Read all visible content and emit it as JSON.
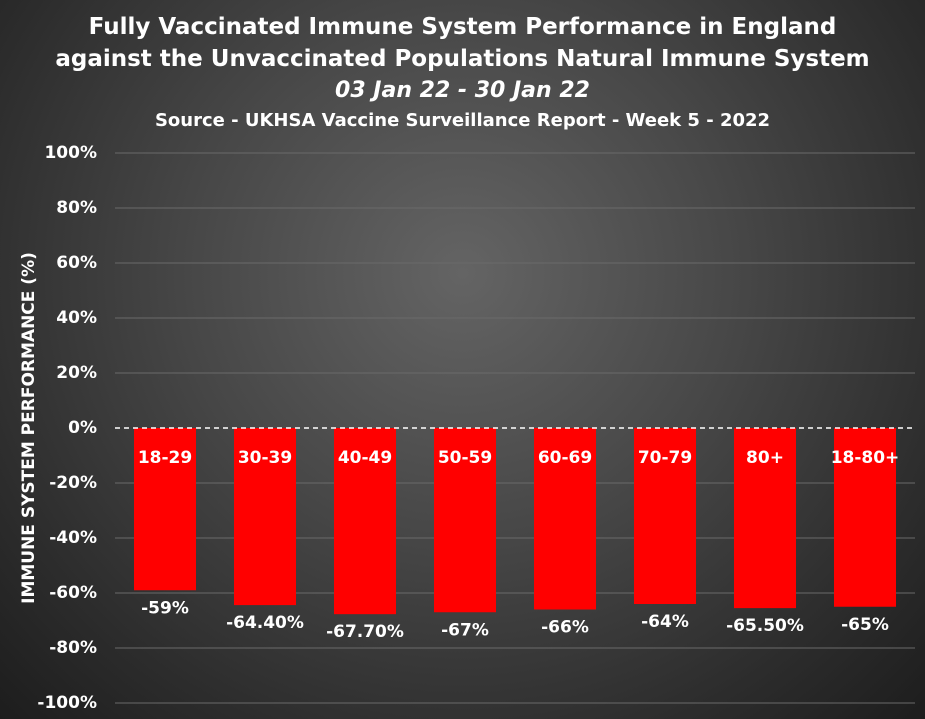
{
  "title_lines": [
    "Fully Vaccinated Immune System Performance in England",
    "against the Unvaccinated Populations Natural Immune System",
    "03 Jan 22 - 30 Jan 22",
    "Source - UKHSA Vaccine Surveillance Report - Week 5 - 2022"
  ],
  "chart_data": {
    "type": "bar",
    "title": "Fully Vaccinated Immune System Performance in England against the Unvaccinated Populations Natural Immune System",
    "subtitle": "03 Jan 22 - 30 Jan 22",
    "source": "Source - UKHSA Vaccine Surveillance Report - Week 5 - 2022",
    "xlabel": "",
    "ylabel": "IMMUNE SYSTEM PERFORMANCE  (%)",
    "ylim": [
      -100,
      100
    ],
    "yticks": [
      100,
      80,
      60,
      40,
      20,
      0,
      -20,
      -40,
      -60,
      -80,
      -100
    ],
    "ytick_labels": [
      "100%",
      "80%",
      "60%",
      "40%",
      "20%",
      "0%",
      "-20%",
      "-40%",
      "-60%",
      "-80%",
      "-100%"
    ],
    "categories": [
      "18-29",
      "30-39",
      "40-49",
      "50-59",
      "60-69",
      "70-79",
      "80+",
      "18-80+"
    ],
    "values": [
      -59,
      -64.4,
      -67.7,
      -67,
      -66,
      -64,
      -65.5,
      -65
    ],
    "data_labels": [
      "-59%",
      "-64.40%",
      "-67.70%",
      "-67%",
      "-66%",
      "-64%",
      "-65.50%",
      "-65%"
    ],
    "category_labels_inside_bars": true,
    "zero_line": "dashed",
    "grid": true,
    "bar_color": "#ff0000",
    "text_color": "#ffffff",
    "grid_color": "#6a6a6a",
    "background": "dark radial gradient"
  }
}
